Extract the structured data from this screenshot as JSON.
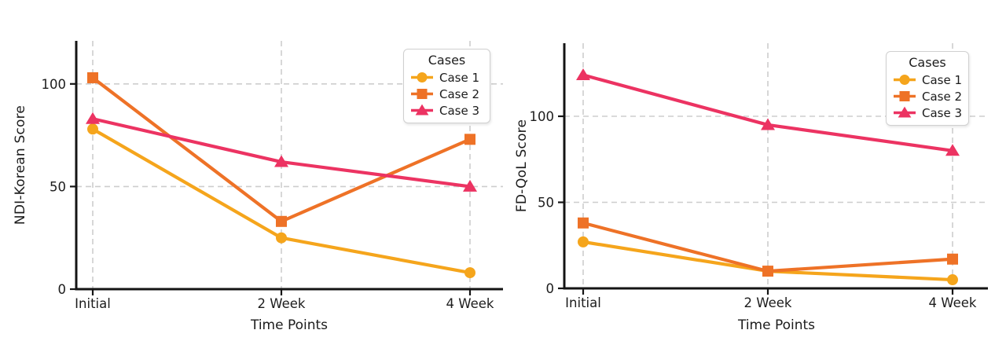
{
  "figure": {
    "background": "#ffffff",
    "axis_color": "#141414",
    "grid_color": "#cdcdcd",
    "text_color": "#1c1c1c"
  },
  "chart_data": [
    {
      "type": "line",
      "title": "",
      "xlabel": "Time Points",
      "ylabel": "NDI-Korean Score",
      "categories": [
        "Initial",
        "2 Week",
        "4 Week"
      ],
      "yticks": [
        0,
        50,
        100
      ],
      "ylim": [
        0,
        121
      ],
      "grid": true,
      "legend_title": "Cases",
      "legend_position": "upper right",
      "series": [
        {
          "name": "Case 1",
          "marker": "circle",
          "color": "#F5A51C",
          "values": [
            78,
            25,
            8
          ]
        },
        {
          "name": "Case 2",
          "marker": "square",
          "color": "#EE7227",
          "values": [
            103,
            33,
            73
          ]
        },
        {
          "name": "Case 3",
          "marker": "triangle",
          "color": "#EC3362",
          "values": [
            83,
            62,
            50
          ]
        }
      ]
    },
    {
      "type": "line",
      "title": "",
      "xlabel": "Time Points",
      "ylabel": "FD-QoL Score",
      "categories": [
        "Initial",
        "2 Week",
        "4 Week"
      ],
      "yticks": [
        0,
        50,
        100
      ],
      "ylim": [
        0,
        142
      ],
      "grid": true,
      "legend_title": "Cases",
      "legend_position": "upper right",
      "series": [
        {
          "name": "Case 1",
          "marker": "circle",
          "color": "#F5A51C",
          "values": [
            27,
            10,
            5
          ]
        },
        {
          "name": "Case 2",
          "marker": "square",
          "color": "#EE7227",
          "values": [
            38,
            10,
            17
          ]
        },
        {
          "name": "Case 3",
          "marker": "triangle",
          "color": "#EC3362",
          "values": [
            124,
            95,
            80
          ]
        }
      ]
    }
  ]
}
